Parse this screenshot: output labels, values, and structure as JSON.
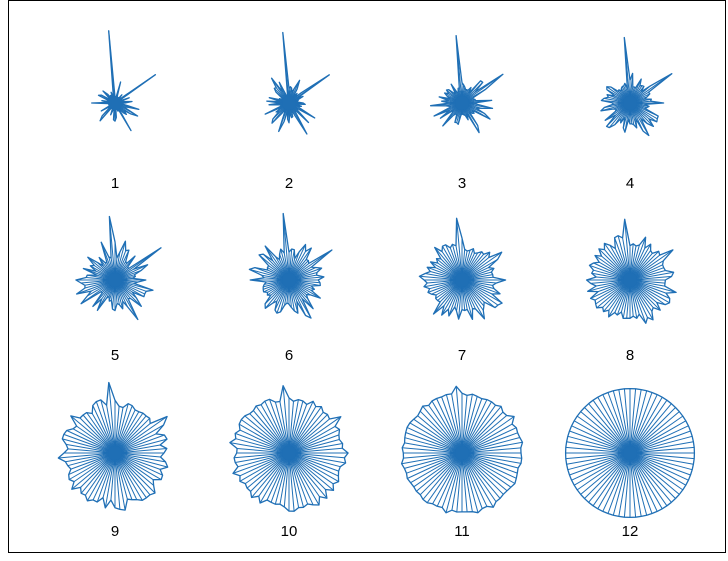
{
  "chart_data": {
    "type": "radial-glyph-grid",
    "layout": "3 rows x 4 columns",
    "ray_count": 72,
    "line_color": "#1f6fb5",
    "glyphs": [
      {
        "label": "1",
        "regularity": 0.0
      },
      {
        "label": "2",
        "regularity": 0.09
      },
      {
        "label": "3",
        "regularity": 0.18
      },
      {
        "label": "4",
        "regularity": 0.27
      },
      {
        "label": "5",
        "regularity": 0.36
      },
      {
        "label": "6",
        "regularity": 0.45
      },
      {
        "label": "7",
        "regularity": 0.55
      },
      {
        "label": "8",
        "regularity": 0.64
      },
      {
        "label": "9",
        "regularity": 0.73
      },
      {
        "label": "10",
        "regularity": 0.82
      },
      {
        "label": "11",
        "regularity": 0.91
      },
      {
        "label": "12",
        "regularity": 1.0
      }
    ]
  }
}
